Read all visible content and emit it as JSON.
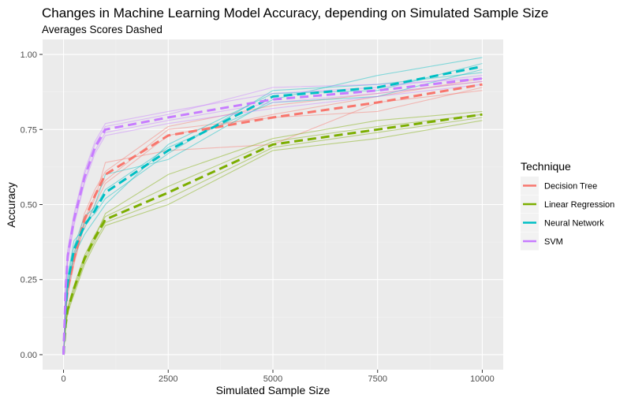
{
  "chart_data": {
    "type": "line",
    "title": "Changes in Machine Learning Model Accuracy, depending on Simulated Sample Size",
    "subtitle": "Averages Scores Dashed",
    "xlabel": "Simulated Sample Size",
    "ylabel": "Accuracy",
    "xlim": [
      -500,
      10500
    ],
    "ylim": [
      -0.05,
      1.05
    ],
    "x_ticks": [
      0,
      2500,
      5000,
      7500,
      10000
    ],
    "x_tick_labels": [
      "0",
      "2500",
      "5000",
      "7500",
      "10000"
    ],
    "y_ticks": [
      0,
      0.25,
      0.5,
      0.75,
      1.0
    ],
    "y_tick_labels": [
      "0.00",
      "0.25",
      "0.50",
      "0.75",
      "1.00"
    ],
    "grid": true,
    "legend": {
      "title": "Technique",
      "position": "right"
    },
    "x": [
      0,
      50,
      100,
      250,
      500,
      750,
      1000,
      2500,
      5000,
      7500,
      10000
    ],
    "series": [
      {
        "name": "Decision Tree",
        "color": "#F8766D",
        "mean": [
          0,
          0.15,
          0.22,
          0.32,
          0.45,
          0.53,
          0.6,
          0.73,
          0.79,
          0.84,
          0.9
        ],
        "runs": [
          [
            0,
            0.14,
            0.2,
            0.3,
            0.44,
            0.52,
            0.64,
            0.68,
            0.7,
            0.84,
            0.88
          ],
          [
            0,
            0.16,
            0.23,
            0.33,
            0.47,
            0.55,
            0.61,
            0.76,
            0.83,
            0.87,
            0.91
          ],
          [
            0,
            0.13,
            0.21,
            0.31,
            0.43,
            0.5,
            0.57,
            0.73,
            0.8,
            0.86,
            0.92
          ],
          [
            0,
            0.15,
            0.22,
            0.32,
            0.45,
            0.53,
            0.58,
            0.75,
            0.79,
            0.81,
            0.89
          ]
        ]
      },
      {
        "name": "Linear Regression",
        "color": "#7CAE00",
        "mean": [
          0,
          0.1,
          0.15,
          0.22,
          0.32,
          0.39,
          0.45,
          0.54,
          0.7,
          0.75,
          0.8
        ],
        "runs": [
          [
            0,
            0.09,
            0.14,
            0.2,
            0.3,
            0.37,
            0.43,
            0.5,
            0.68,
            0.72,
            0.78
          ],
          [
            0,
            0.11,
            0.16,
            0.23,
            0.33,
            0.4,
            0.46,
            0.56,
            0.71,
            0.76,
            0.8
          ],
          [
            0,
            0.1,
            0.15,
            0.22,
            0.32,
            0.39,
            0.47,
            0.6,
            0.72,
            0.78,
            0.81
          ],
          [
            0,
            0.1,
            0.15,
            0.21,
            0.31,
            0.38,
            0.44,
            0.52,
            0.69,
            0.74,
            0.79
          ]
        ]
      },
      {
        "name": "Neural Network",
        "color": "#00BFC4",
        "mean": [
          0,
          0.16,
          0.24,
          0.35,
          0.43,
          0.48,
          0.54,
          0.68,
          0.86,
          0.89,
          0.96
        ],
        "runs": [
          [
            0,
            0.18,
            0.26,
            0.38,
            0.42,
            0.5,
            0.6,
            0.65,
            0.85,
            0.93,
            0.99
          ],
          [
            0,
            0.15,
            0.22,
            0.33,
            0.4,
            0.45,
            0.5,
            0.7,
            0.87,
            0.88,
            0.97
          ],
          [
            0,
            0.17,
            0.25,
            0.36,
            0.46,
            0.49,
            0.55,
            0.69,
            0.84,
            0.86,
            0.95
          ],
          [
            0,
            0.14,
            0.23,
            0.34,
            0.44,
            0.47,
            0.52,
            0.67,
            0.88,
            0.9,
            0.94
          ]
        ]
      },
      {
        "name": "SVM",
        "color": "#C77CFF",
        "mean": [
          0,
          0.22,
          0.33,
          0.45,
          0.59,
          0.69,
          0.75,
          0.79,
          0.85,
          0.88,
          0.92
        ],
        "runs": [
          [
            0,
            0.24,
            0.35,
            0.47,
            0.61,
            0.71,
            0.77,
            0.81,
            0.87,
            0.89,
            0.93
          ],
          [
            0,
            0.21,
            0.32,
            0.44,
            0.58,
            0.68,
            0.74,
            0.78,
            0.84,
            0.87,
            0.91
          ],
          [
            0,
            0.23,
            0.34,
            0.46,
            0.6,
            0.7,
            0.76,
            0.8,
            0.89,
            0.9,
            0.92
          ],
          [
            0,
            0.2,
            0.31,
            0.43,
            0.57,
            0.67,
            0.73,
            0.77,
            0.82,
            0.86,
            0.9
          ]
        ]
      }
    ]
  }
}
